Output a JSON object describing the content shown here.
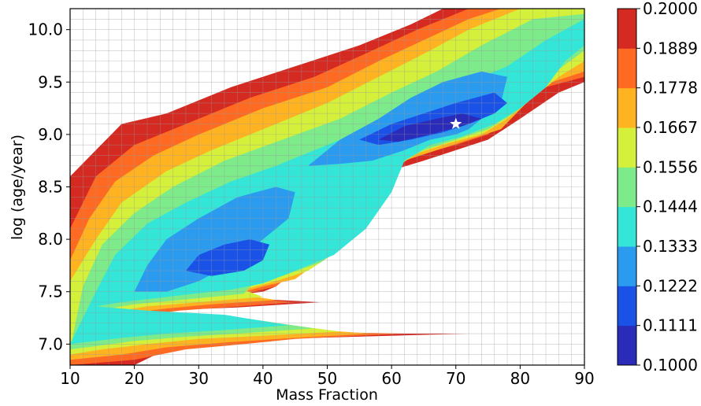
{
  "chart_data": {
    "type": "heatmap",
    "title": "",
    "xlabel": "Mass Fraction",
    "ylabel": "log (age/year)",
    "xlim": [
      10,
      90
    ],
    "ylim": [
      6.8,
      10.2
    ],
    "xticks": [
      "10",
      "20",
      "30",
      "40",
      "50",
      "60",
      "70",
      "80",
      "90"
    ],
    "yticks": [
      "7.0",
      "7.5",
      "8.0",
      "8.5",
      "9.0",
      "9.5",
      "10.0"
    ],
    "grid": true,
    "colorbar": {
      "ticks": [
        "0.1000",
        "0.1111",
        "0.1222",
        "0.1333",
        "0.1444",
        "0.1556",
        "0.1667",
        "0.1778",
        "0.1889",
        "0.2000"
      ],
      "colors": [
        "#2a2bb8",
        "#1a52e8",
        "#2b9bf0",
        "#33e6d8",
        "#7deb8a",
        "#d4f03a",
        "#ffb320",
        "#ff6a22",
        "#d42a22"
      ]
    },
    "marker": {
      "shape": "star",
      "x": 70,
      "y": 9.1,
      "color": "#ffffff"
    },
    "contour_levels": [
      {
        "level": "0.1889-0.2000",
        "color": "#d42a22",
        "points": [
          [
            10,
            8.6
          ],
          [
            18,
            9.1
          ],
          [
            25,
            9.2
          ],
          [
            35,
            9.45
          ],
          [
            45,
            9.65
          ],
          [
            55,
            9.85
          ],
          [
            63,
            10.05
          ],
          [
            68,
            10.2
          ],
          [
            72,
            10.2
          ],
          [
            90,
            10.2
          ],
          [
            90,
            9.5
          ],
          [
            86,
            9.4
          ],
          [
            80,
            9.15
          ],
          [
            75,
            8.95
          ],
          [
            70,
            8.85
          ],
          [
            65,
            8.75
          ],
          [
            58,
            8.62
          ],
          [
            54,
            8.35
          ],
          [
            50,
            7.95
          ],
          [
            45,
            7.7
          ],
          [
            42,
            7.55
          ],
          [
            40,
            7.5
          ],
          [
            33,
            7.45
          ],
          [
            49,
            7.4
          ],
          [
            36,
            7.35
          ],
          [
            28,
            7.33
          ],
          [
            22,
            7.32
          ],
          [
            33,
            7.2
          ],
          [
            48,
            7.1
          ],
          [
            72,
            7.1
          ],
          [
            42,
            7.05
          ],
          [
            35,
            7.0
          ],
          [
            25,
            6.95
          ],
          [
            20,
            6.8
          ],
          [
            10,
            6.8
          ]
        ]
      },
      {
        "level": "0.1778-0.1889",
        "color": "#ff6a22",
        "points": [
          [
            10,
            8.1
          ],
          [
            14,
            8.6
          ],
          [
            20,
            8.9
          ],
          [
            28,
            9.1
          ],
          [
            38,
            9.35
          ],
          [
            48,
            9.55
          ],
          [
            57,
            9.8
          ],
          [
            64,
            10.0
          ],
          [
            72,
            10.2
          ],
          [
            90,
            10.2
          ],
          [
            90,
            9.55
          ],
          [
            84,
            9.45
          ],
          [
            80,
            9.25
          ],
          [
            75,
            9.0
          ],
          [
            70,
            8.9
          ],
          [
            64,
            8.8
          ],
          [
            60,
            8.7
          ],
          [
            55,
            8.45
          ],
          [
            52,
            8.05
          ],
          [
            47,
            7.75
          ],
          [
            43,
            7.6
          ],
          [
            42,
            7.55
          ],
          [
            35,
            7.45
          ],
          [
            45,
            7.4
          ],
          [
            34,
            7.35
          ],
          [
            27,
            7.32
          ],
          [
            22,
            7.28
          ],
          [
            32,
            7.22
          ],
          [
            45,
            7.12
          ],
          [
            62,
            7.1
          ],
          [
            45,
            7.05
          ],
          [
            37,
            7.0
          ],
          [
            28,
            6.95
          ],
          [
            20,
            6.85
          ],
          [
            10,
            6.8
          ]
        ]
      },
      {
        "level": "0.1667-0.1778",
        "color": "#ffb320",
        "points": [
          [
            10,
            7.8
          ],
          [
            13,
            8.2
          ],
          [
            17,
            8.55
          ],
          [
            23,
            8.8
          ],
          [
            30,
            9.0
          ],
          [
            40,
            9.25
          ],
          [
            50,
            9.45
          ],
          [
            58,
            9.7
          ],
          [
            65,
            9.9
          ],
          [
            72,
            10.1
          ],
          [
            77,
            10.2
          ],
          [
            90,
            10.2
          ],
          [
            90,
            9.6
          ],
          [
            85,
            9.5
          ],
          [
            81,
            9.3
          ],
          [
            77,
            9.05
          ],
          [
            72,
            8.95
          ],
          [
            67,
            8.85
          ],
          [
            62,
            8.75
          ],
          [
            57,
            8.5
          ],
          [
            54,
            8.1
          ],
          [
            49,
            7.8
          ],
          [
            45,
            7.62
          ],
          [
            40,
            7.55
          ],
          [
            36,
            7.48
          ],
          [
            42,
            7.42
          ],
          [
            32,
            7.38
          ],
          [
            25,
            7.34
          ],
          [
            20,
            7.3
          ],
          [
            30,
            7.24
          ],
          [
            45,
            7.15
          ],
          [
            57,
            7.1
          ],
          [
            45,
            7.06
          ],
          [
            35,
            7.02
          ],
          [
            25,
            6.97
          ],
          [
            18,
            6.9
          ],
          [
            10,
            6.85
          ]
        ]
      },
      {
        "level": "0.1556-0.1667",
        "color": "#d4f03a",
        "points": [
          [
            10,
            7.6
          ],
          [
            14,
            8.0
          ],
          [
            18,
            8.35
          ],
          [
            25,
            8.65
          ],
          [
            32,
            8.85
          ],
          [
            42,
            9.1
          ],
          [
            50,
            9.3
          ],
          [
            58,
            9.55
          ],
          [
            66,
            9.8
          ],
          [
            72,
            10.0
          ],
          [
            80,
            10.2
          ],
          [
            90,
            10.2
          ],
          [
            90,
            9.7
          ],
          [
            86,
            9.55
          ],
          [
            82,
            9.35
          ],
          [
            78,
            9.15
          ],
          [
            74,
            9.0
          ],
          [
            69,
            8.92
          ],
          [
            64,
            8.82
          ],
          [
            59,
            8.62
          ],
          [
            56,
            8.25
          ],
          [
            52,
            7.9
          ],
          [
            47,
            7.7
          ],
          [
            42,
            7.6
          ],
          [
            37,
            7.52
          ],
          [
            40,
            7.45
          ],
          [
            30,
            7.4
          ],
          [
            22,
            7.36
          ],
          [
            18,
            7.32
          ],
          [
            28,
            7.27
          ],
          [
            42,
            7.2
          ],
          [
            52,
            7.12
          ],
          [
            40,
            7.08
          ],
          [
            30,
            7.05
          ],
          [
            22,
            7.0
          ],
          [
            15,
            6.95
          ],
          [
            10,
            6.9
          ]
        ]
      },
      {
        "level": "0.1444-0.1556",
        "color": "#7deb8a",
        "points": [
          [
            12,
            7.55
          ],
          [
            15,
            7.95
          ],
          [
            20,
            8.25
          ],
          [
            26,
            8.5
          ],
          [
            34,
            8.75
          ],
          [
            43,
            8.95
          ],
          [
            52,
            9.15
          ],
          [
            60,
            9.4
          ],
          [
            67,
            9.6
          ],
          [
            74,
            9.85
          ],
          [
            82,
            10.1
          ],
          [
            90,
            10.15
          ],
          [
            90,
            9.8
          ],
          [
            86,
            9.62
          ],
          [
            83,
            9.4
          ],
          [
            79,
            9.2
          ],
          [
            75,
            9.05
          ],
          [
            70,
            8.95
          ],
          [
            65,
            8.85
          ],
          [
            60,
            8.68
          ],
          [
            58,
            8.35
          ],
          [
            54,
            8.0
          ],
          [
            49,
            7.78
          ],
          [
            43,
            7.65
          ],
          [
            38,
            7.55
          ],
          [
            37,
            7.48
          ],
          [
            27,
            7.42
          ],
          [
            20,
            7.38
          ],
          [
            16,
            7.34
          ],
          [
            25,
            7.3
          ],
          [
            38,
            7.24
          ],
          [
            48,
            7.15
          ],
          [
            36,
            7.1
          ],
          [
            28,
            7.07
          ],
          [
            20,
            7.03
          ],
          [
            14,
            6.98
          ],
          [
            10,
            6.95
          ]
        ]
      },
      {
        "level": "0.1333-0.1444",
        "color": "#33e6d8",
        "points": [
          [
            14,
            7.5
          ],
          [
            17,
            7.85
          ],
          [
            22,
            8.15
          ],
          [
            28,
            8.35
          ],
          [
            35,
            8.55
          ],
          [
            42,
            8.7
          ],
          [
            50,
            8.9
          ],
          [
            58,
            9.1
          ],
          [
            65,
            9.35
          ],
          [
            72,
            9.5
          ],
          [
            78,
            9.65
          ],
          [
            84,
            9.9
          ],
          [
            90,
            10.1
          ],
          [
            90,
            9.85
          ],
          [
            87,
            9.7
          ],
          [
            84,
            9.45
          ],
          [
            80,
            9.25
          ],
          [
            76,
            9.1
          ],
          [
            71,
            8.98
          ],
          [
            66,
            8.9
          ],
          [
            62,
            8.75
          ],
          [
            60,
            8.45
          ],
          [
            56,
            8.1
          ],
          [
            51,
            7.85
          ],
          [
            45,
            7.7
          ],
          [
            40,
            7.58
          ],
          [
            35,
            7.52
          ],
          [
            25,
            7.45
          ],
          [
            18,
            7.4
          ],
          [
            14,
            7.36
          ],
          [
            22,
            7.32
          ],
          [
            34,
            7.28
          ],
          [
            44,
            7.18
          ],
          [
            33,
            7.13
          ],
          [
            25,
            7.1
          ],
          [
            18,
            7.06
          ],
          [
            10,
            7.0
          ]
        ]
      },
      {
        "level": "0.1222-0.1333",
        "color": "#2b9bf0",
        "points": [
          [
            20,
            7.5
          ],
          [
            22,
            7.75
          ],
          [
            25,
            8.0
          ],
          [
            30,
            8.2
          ],
          [
            36,
            8.4
          ],
          [
            42,
            8.5
          ],
          [
            45,
            8.45
          ],
          [
            44,
            8.2
          ],
          [
            40,
            8.0
          ],
          [
            37,
            7.85
          ],
          [
            33,
            7.7
          ],
          [
            30,
            7.6
          ],
          [
            25,
            7.5
          ]
        ]
      },
      {
        "level": "0.1222-0.1333 b",
        "color": "#2b9bf0",
        "points": [
          [
            47,
            8.7
          ],
          [
            52,
            8.95
          ],
          [
            58,
            9.15
          ],
          [
            63,
            9.35
          ],
          [
            68,
            9.5
          ],
          [
            74,
            9.6
          ],
          [
            78,
            9.55
          ],
          [
            77,
            9.3
          ],
          [
            74,
            9.15
          ],
          [
            72,
            9.05
          ],
          [
            70,
            9.0
          ],
          [
            66,
            8.95
          ],
          [
            62,
            8.85
          ],
          [
            57,
            8.75
          ],
          [
            52,
            8.72
          ]
        ]
      },
      {
        "level": "0.1111-0.1222",
        "color": "#1a52e8",
        "points": [
          [
            28,
            7.7
          ],
          [
            30,
            7.85
          ],
          [
            34,
            7.95
          ],
          [
            38,
            8.0
          ],
          [
            41,
            7.95
          ],
          [
            40,
            7.8
          ],
          [
            37,
            7.7
          ],
          [
            32,
            7.65
          ]
        ]
      },
      {
        "level": "0.1111-0.1222 b",
        "color": "#1a52e8",
        "points": [
          [
            55,
            8.95
          ],
          [
            60,
            9.1
          ],
          [
            65,
            9.2
          ],
          [
            70,
            9.3
          ],
          [
            76,
            9.4
          ],
          [
            78,
            9.3
          ],
          [
            76,
            9.2
          ],
          [
            72,
            9.1
          ],
          [
            68,
            9.02
          ],
          [
            63,
            8.95
          ],
          [
            58,
            8.9
          ]
        ]
      },
      {
        "level": "0.1000-0.1111",
        "color": "#2a2bb8",
        "points": [
          [
            58,
            8.95
          ],
          [
            62,
            9.08
          ],
          [
            67,
            9.15
          ],
          [
            71,
            9.2
          ],
          [
            74,
            9.15
          ],
          [
            71,
            9.08
          ],
          [
            66,
            9.0
          ],
          [
            61,
            8.93
          ]
        ]
      }
    ]
  }
}
